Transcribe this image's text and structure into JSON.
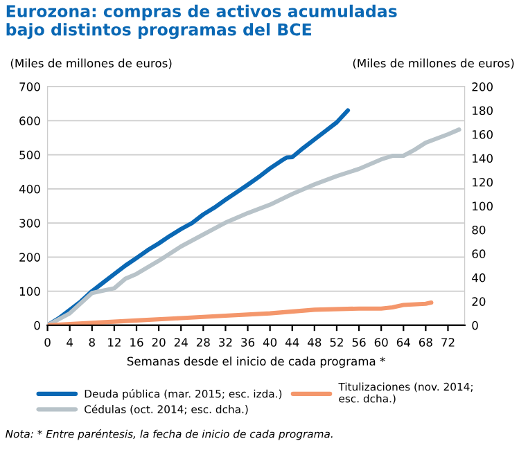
{
  "chart_data": {
    "type": "line",
    "title": "Eurozona: compras de activos acumuladas\nbajo distintos programas del BCE",
    "ylabel": "(Miles de millones de euros)",
    "y2label": "(Miles de millones de euros)",
    "xlabel": "Semanas desde el inicio de cada programa *",
    "xlim": [
      0,
      75
    ],
    "xticks": [
      0,
      4,
      8,
      12,
      16,
      20,
      24,
      28,
      32,
      36,
      40,
      44,
      48,
      52,
      56,
      60,
      64,
      68,
      72
    ],
    "ylim": [
      0,
      700
    ],
    "yticks": [
      0,
      100,
      200,
      300,
      400,
      500,
      600,
      700
    ],
    "y2lim": [
      0,
      200
    ],
    "y2ticks": [
      0,
      20,
      40,
      60,
      80,
      100,
      120,
      140,
      160,
      180,
      200
    ],
    "grid": "y",
    "legend": "bottom",
    "series": [
      {
        "name": "Deuda pública (mar. 2015; esc. izda.)",
        "color": "#0a68b4",
        "x": [
          0,
          2,
          4,
          6,
          8,
          10,
          12,
          14,
          16,
          18,
          20,
          22,
          24,
          26,
          28,
          30,
          32,
          34,
          36,
          38,
          40,
          42,
          43,
          44,
          46,
          48,
          50,
          52,
          54
        ],
        "values": [
          0,
          20,
          45,
          70,
          100,
          125,
          150,
          175,
          197,
          220,
          240,
          262,
          282,
          300,
          325,
          345,
          368,
          390,
          412,
          435,
          460,
          482,
          492,
          493,
          520,
          545,
          570,
          595,
          630
        ]
      },
      {
        "name": "Cédulas (oct. 2014; esc. dcha.)",
        "color": "#b8c3c9",
        "axis": "y2",
        "x": [
          0,
          4,
          8,
          10,
          12,
          14,
          16,
          20,
          24,
          28,
          32,
          36,
          40,
          44,
          48,
          52,
          56,
          60,
          62,
          64,
          66,
          68,
          72,
          74
        ],
        "values": [
          0,
          10,
          27,
          29,
          31,
          39,
          43,
          54,
          66,
          76,
          86,
          94,
          101,
          110,
          118,
          125,
          131,
          139,
          142,
          142,
          147,
          153,
          160,
          164
        ]
      },
      {
        "name": "Titulizaciones (nov. 2014;\nesc. dcha.)",
        "color": "#f4976c",
        "axis": "y2",
        "x": [
          0,
          8,
          16,
          24,
          32,
          40,
          48,
          56,
          60,
          62,
          64,
          68,
          69
        ],
        "values": [
          0,
          2,
          4,
          6,
          8,
          10,
          13,
          14,
          14,
          15,
          17,
          18,
          19
        ]
      }
    ],
    "annotations": [
      "Nota: * Entre paréntesis, la fecha de inicio de cada programa."
    ]
  }
}
